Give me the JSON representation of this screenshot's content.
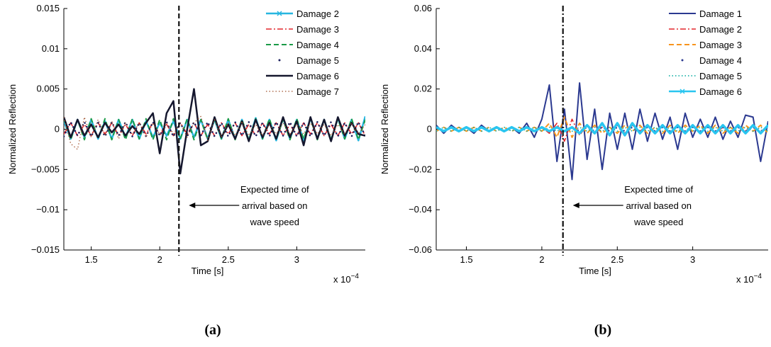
{
  "chart_data": [
    {
      "type": "line",
      "panel_label": "(a)",
      "xlabel": "Time [s]",
      "ylabel": "Normalized Reflection",
      "x_scale_label": "x 10",
      "x_scale_exponent": "−4",
      "xlim": [
        1.3,
        3.5
      ],
      "xticks": [
        1.5,
        2,
        2.5,
        3
      ],
      "ylim": [
        -0.015,
        0.015
      ],
      "yticks": [
        {
          "value": -0.015,
          "label": "−0.015"
        },
        {
          "value": -0.01,
          "label": "−0.01"
        },
        {
          "value": -0.005,
          "label": "−0.005"
        },
        0,
        0.005,
        0.01,
        0.015
      ],
      "vline_x": 2.14,
      "vline_style": "dashed",
      "annotation": [
        "Expected time of",
        "arrival based on",
        "wave speed"
      ],
      "legend": "upper right",
      "x": [
        1.3,
        1.35,
        1.4,
        1.45,
        1.5,
        1.55,
        1.6,
        1.65,
        1.7,
        1.75,
        1.8,
        1.85,
        1.9,
        1.95,
        2.0,
        2.05,
        2.1,
        2.15,
        2.2,
        2.25,
        2.3,
        2.35,
        2.4,
        2.45,
        2.5,
        2.55,
        2.6,
        2.65,
        2.7,
        2.75,
        2.8,
        2.85,
        2.9,
        2.95,
        3.0,
        3.05,
        3.1,
        3.15,
        3.2,
        3.25,
        3.3,
        3.35,
        3.4,
        3.45,
        3.5
      ],
      "series": [
        {
          "name": "Damage 2",
          "color": "#27b6e0",
          "style": "solid",
          "marker": "x",
          "width": 2.5,
          "values": [
            0.001,
            -0.0012,
            0.0012,
            -0.001,
            0.0012,
            -0.0012,
            0.001,
            -0.0012,
            0.0012,
            -0.001,
            0.0012,
            -0.0012,
            0.001,
            -0.001,
            0.0008,
            -0.0008,
            0.001,
            -0.0012,
            0.0012,
            -0.001,
            0.0012,
            -0.0012,
            0.0012,
            -0.0012,
            0.0012,
            -0.0012,
            0.0012,
            -0.0014,
            0.0014,
            -0.0012,
            0.0012,
            -0.0014,
            0.0014,
            -0.0012,
            0.0012,
            -0.0014,
            0.0014,
            -0.0012,
            0.0012,
            -0.0014,
            0.0014,
            -0.0012,
            0.0012,
            -0.0014,
            0.0016
          ]
        },
        {
          "name": "Damage 3",
          "color": "#e3262b",
          "style": "dashdot",
          "width": 1.6,
          "values": [
            -0.0006,
            0.0008,
            -0.0008,
            0.0006,
            -0.0008,
            0.0008,
            -0.0006,
            0.0008,
            -0.0008,
            0.0006,
            -0.0008,
            0.0008,
            -0.0006,
            0.0008,
            -0.0008,
            0.0006,
            -0.0008,
            0.0008,
            -0.0006,
            0.0008,
            -0.0008,
            0.0006,
            -0.0008,
            0.0008,
            -0.0006,
            0.0008,
            -0.0008,
            0.0006,
            -0.0008,
            0.0008,
            -0.0006,
            0.0008,
            -0.0008,
            0.0006,
            -0.0008,
            0.0008,
            -0.0006,
            0.0008,
            -0.0008,
            0.0006,
            -0.0008,
            0.0008,
            -0.0006,
            0.0008,
            -0.0008
          ]
        },
        {
          "name": "Damage 4",
          "color": "#1a9a47",
          "style": "dashed",
          "width": 2,
          "values": [
            0.0013,
            -0.0013,
            0.0012,
            -0.0013,
            0.0013,
            -0.0012,
            0.0013,
            -0.0013,
            0.0012,
            -0.0013,
            0.0013,
            -0.0012,
            0.0013,
            -0.0013,
            0.0012,
            -0.0013,
            0.0013,
            -0.0012,
            0.0013,
            -0.0013,
            0.0012,
            -0.0013,
            0.0013,
            -0.0012,
            0.0013,
            -0.0013,
            0.0012,
            -0.0013,
            0.0013,
            -0.0012,
            0.0013,
            -0.0013,
            0.0012,
            -0.0013,
            0.0013,
            -0.0012,
            0.0013,
            -0.0013,
            0.0012,
            -0.0013,
            0.0013,
            -0.0012,
            0.0013,
            -0.0013,
            0.0012
          ]
        },
        {
          "name": "Damage 5",
          "color": "#1b1f5e",
          "style": "dots",
          "width": 1.5,
          "values": [
            -0.0009,
            0.0009,
            -0.0008,
            0.0009,
            -0.0009,
            0.0008,
            -0.0009,
            0.0009,
            -0.0008,
            0.0009,
            -0.0009,
            0.0008,
            -0.0009,
            0.0009,
            -0.0008,
            0.0009,
            -0.0009,
            0.0008,
            -0.0009,
            0.0009,
            -0.0008,
            0.0009,
            -0.0009,
            0.0008,
            -0.0009,
            0.0009,
            -0.0008,
            0.0009,
            -0.0009,
            0.0008,
            -0.0009,
            0.0009,
            -0.0008,
            0.0009,
            -0.0009,
            0.0008,
            -0.0009,
            0.0009,
            -0.0008,
            0.0009,
            -0.0009,
            0.0008,
            -0.0009,
            0.0009,
            -0.0008
          ]
        },
        {
          "name": "Damage 6",
          "color": "#15172e",
          "style": "solid",
          "width": 2.5,
          "values": [
            0.0015,
            -0.001,
            0.0012,
            -0.0008,
            0.0006,
            -0.001,
            0.0008,
            -0.0004,
            0.0006,
            -0.0008,
            0.0004,
            -0.0006,
            0.0008,
            0.002,
            -0.003,
            0.002,
            0.0035,
            -0.0055,
            0.0,
            0.005,
            -0.002,
            -0.0015,
            0.0015,
            -0.001,
            0.0006,
            -0.0012,
            0.001,
            -0.0015,
            0.0012,
            -0.001,
            0.0008,
            -0.0012,
            0.0015,
            -0.001,
            0.001,
            -0.002,
            0.0015,
            -0.0012,
            0.0012,
            -0.0015,
            0.0015,
            -0.0008,
            0.0008,
            -0.0006,
            -0.0008
          ]
        },
        {
          "name": "Damage 7",
          "color": "#a0522d",
          "style": "dotted",
          "width": 1.2,
          "values": [
            0.0015,
            -0.0018,
            -0.0025,
            0.0015,
            -0.001,
            0.0012,
            -0.0008,
            0.001,
            -0.0012,
            0.0008,
            -0.0006,
            0.0008,
            -0.001,
            0.0008,
            -0.0006,
            0.0008,
            -0.0006,
            0.0008,
            -0.001,
            0.0008,
            0.0016,
            -0.0014,
            0.0012,
            -0.001,
            0.0008,
            -0.0008,
            0.001,
            -0.0008,
            0.0006,
            -0.0008,
            0.0006,
            -0.0006,
            0.0008,
            -0.0006,
            0.0006,
            -0.0006,
            0.0008,
            -0.0006,
            0.0006,
            -0.0008,
            0.0006,
            -0.0006,
            0.0008,
            -0.0006,
            0.0006
          ]
        }
      ]
    },
    {
      "type": "line",
      "panel_label": "(b)",
      "xlabel": "Time [s]",
      "ylabel": "Normalized Reflection",
      "x_scale_label": "x 10",
      "x_scale_exponent": "−4",
      "xlim": [
        1.3,
        3.5
      ],
      "xticks": [
        1.5,
        2,
        2.5,
        3
      ],
      "ylim": [
        -0.06,
        0.06
      ],
      "yticks": [
        {
          "value": -0.06,
          "label": "−0.06"
        },
        {
          "value": -0.04,
          "label": "−0.04"
        },
        {
          "value": -0.02,
          "label": "−0.02"
        },
        0,
        0.02,
        0.04,
        0.06
      ],
      "vline_x": 2.14,
      "vline_style": "dashdot",
      "annotation": [
        "Expected time of",
        "arrival based on",
        "wave speed"
      ],
      "legend": "upper right",
      "x": [
        1.3,
        1.35,
        1.4,
        1.45,
        1.5,
        1.55,
        1.6,
        1.65,
        1.7,
        1.75,
        1.8,
        1.85,
        1.9,
        1.95,
        2.0,
        2.05,
        2.1,
        2.15,
        2.2,
        2.25,
        2.3,
        2.35,
        2.4,
        2.45,
        2.5,
        2.55,
        2.6,
        2.65,
        2.7,
        2.75,
        2.8,
        2.85,
        2.9,
        2.95,
        3.0,
        3.05,
        3.1,
        3.15,
        3.2,
        3.25,
        3.3,
        3.35,
        3.4,
        3.45,
        3.5
      ],
      "series": [
        {
          "name": "Damage 1",
          "color": "#2b3990",
          "style": "solid",
          "width": 2,
          "values": [
            0.002,
            -0.002,
            0.002,
            -0.001,
            0.001,
            -0.002,
            0.002,
            -0.001,
            0.001,
            -0.001,
            0.001,
            -0.002,
            0.003,
            -0.004,
            0.005,
            0.022,
            -0.016,
            0.01,
            -0.025,
            0.023,
            -0.015,
            0.01,
            -0.02,
            0.008,
            -0.01,
            0.008,
            -0.01,
            0.01,
            -0.006,
            0.008,
            -0.005,
            0.006,
            -0.01,
            0.008,
            -0.004,
            0.005,
            -0.004,
            0.006,
            -0.005,
            0.004,
            -0.004,
            0.007,
            0.006,
            -0.016,
            0.004
          ]
        },
        {
          "name": "Damage 2",
          "color": "#e3262b",
          "style": "dashdot",
          "width": 1.6,
          "values": [
            0.001,
            -0.001,
            0.001,
            -0.001,
            0.001,
            -0.001,
            0.001,
            -0.001,
            0.001,
            -0.001,
            0.001,
            -0.001,
            0.001,
            -0.001,
            0.001,
            -0.002,
            0.003,
            -0.006,
            0.005,
            -0.003,
            0.002,
            -0.002,
            0.001,
            -0.001,
            0.002,
            -0.002,
            0.002,
            -0.001,
            0.002,
            -0.002,
            0.002,
            -0.002,
            0.002,
            -0.001,
            0.002,
            -0.002,
            0.002,
            -0.002,
            0.001,
            -0.002,
            0.002,
            -0.001,
            0.002,
            -0.002,
            0.002
          ]
        },
        {
          "name": "Damage 3",
          "color": "#f7941d",
          "style": "dashed",
          "width": 2,
          "values": [
            -0.001,
            0.001,
            -0.001,
            0.001,
            -0.001,
            0.001,
            -0.001,
            0.001,
            -0.001,
            0.001,
            -0.001,
            0.001,
            -0.001,
            0.001,
            -0.001,
            0.003,
            -0.004,
            0.006,
            -0.004,
            0.003,
            -0.002,
            0.002,
            -0.002,
            0.001,
            -0.002,
            0.002,
            -0.001,
            0.002,
            -0.002,
            0.001,
            -0.002,
            0.002,
            -0.002,
            0.002,
            -0.001,
            0.002,
            -0.002,
            0.002,
            -0.002,
            0.001,
            -0.002,
            0.002,
            -0.001,
            0.002,
            -0.002
          ]
        },
        {
          "name": "Damage 4",
          "color": "#2b3990",
          "style": "dots",
          "width": 1.5,
          "values": [
            0.001,
            -0.001,
            0.001,
            -0.001,
            0.001,
            -0.001,
            0.001,
            -0.001,
            0.001,
            -0.001,
            0.001,
            -0.001,
            0.001,
            -0.001,
            0.001,
            -0.001,
            0.001,
            -0.001,
            0.001,
            -0.001,
            0.001,
            -0.001,
            0.001,
            -0.001,
            0.001,
            -0.001,
            0.001,
            -0.001,
            0.001,
            -0.001,
            0.001,
            -0.001,
            0.001,
            -0.001,
            0.001,
            -0.001,
            0.001,
            -0.001,
            0.001,
            -0.001,
            0.001,
            -0.001,
            0.001,
            -0.001,
            0.001
          ]
        },
        {
          "name": "Damage 5",
          "color": "#00a99d",
          "style": "dotted",
          "width": 1.5,
          "values": [
            -0.001,
            0.001,
            -0.001,
            0.001,
            -0.001,
            0.001,
            -0.001,
            0.001,
            -0.001,
            0.001,
            -0.001,
            0.001,
            -0.001,
            0.001,
            -0.001,
            0.001,
            -0.001,
            0.001,
            -0.001,
            0.001,
            -0.001,
            0.001,
            -0.001,
            0.001,
            -0.001,
            0.001,
            -0.001,
            0.001,
            -0.001,
            0.001,
            -0.001,
            0.001,
            -0.001,
            0.001,
            -0.001,
            0.001,
            -0.001,
            0.001,
            -0.001,
            0.001,
            -0.001,
            0.001,
            -0.001,
            0.001,
            -0.001
          ]
        },
        {
          "name": "Damage 6",
          "color": "#29c5f0",
          "style": "solid",
          "marker": "x",
          "width": 3.5,
          "values": [
            0.001,
            -0.001,
            0.001,
            -0.001,
            0.001,
            -0.001,
            0.001,
            -0.001,
            0.001,
            -0.001,
            0.001,
            -0.001,
            0.001,
            -0.001,
            0.001,
            -0.001,
            0.001,
            -0.001,
            0.001,
            -0.002,
            0.002,
            -0.002,
            0.003,
            -0.003,
            0.003,
            -0.003,
            0.003,
            -0.002,
            0.002,
            -0.002,
            0.002,
            -0.002,
            0.002,
            -0.002,
            0.002,
            -0.002,
            0.002,
            -0.002,
            0.002,
            -0.002,
            0.002,
            -0.002,
            0.002,
            -0.002,
            0.002
          ]
        }
      ]
    }
  ]
}
